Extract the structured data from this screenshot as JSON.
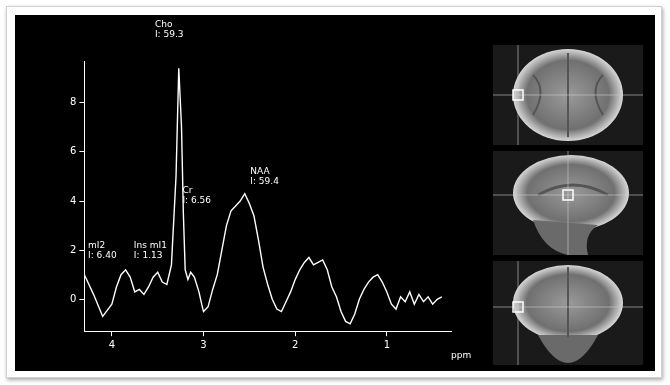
{
  "chart_data": {
    "type": "line",
    "x_label": "ppm",
    "x": [
      4.3,
      4.2,
      4.1,
      4.0,
      3.95,
      3.9,
      3.85,
      3.8,
      3.75,
      3.7,
      3.65,
      3.6,
      3.55,
      3.5,
      3.45,
      3.4,
      3.35,
      3.3,
      3.27,
      3.24,
      3.22,
      3.2,
      3.17,
      3.14,
      3.1,
      3.05,
      3.02,
      3.0,
      2.95,
      2.9,
      2.85,
      2.8,
      2.75,
      2.7,
      2.65,
      2.6,
      2.55,
      2.5,
      2.45,
      2.4,
      2.35,
      2.3,
      2.25,
      2.2,
      2.15,
      2.1,
      2.05,
      2.0,
      1.95,
      1.9,
      1.85,
      1.8,
      1.75,
      1.7,
      1.65,
      1.6,
      1.55,
      1.5,
      1.45,
      1.4,
      1.35,
      1.3,
      1.25,
      1.2,
      1.15,
      1.1,
      1.05,
      1.0,
      0.95,
      0.9,
      0.85,
      0.8,
      0.75,
      0.7,
      0.65,
      0.6,
      0.55,
      0.5,
      0.45,
      0.4
    ],
    "values": [
      1.0,
      0.2,
      -0.7,
      -0.2,
      0.5,
      1.0,
      1.2,
      0.9,
      0.3,
      0.4,
      0.2,
      0.5,
      0.9,
      1.1,
      0.7,
      0.6,
      1.4,
      5.0,
      9.4,
      7.0,
      3.5,
      1.2,
      0.8,
      1.1,
      0.9,
      0.3,
      -0.2,
      -0.5,
      -0.3,
      0.4,
      1.0,
      2.0,
      3.0,
      3.6,
      3.8,
      4.0,
      4.3,
      3.9,
      3.4,
      2.4,
      1.3,
      0.6,
      0.0,
      -0.4,
      -0.5,
      -0.1,
      0.3,
      0.8,
      1.2,
      1.5,
      1.7,
      1.4,
      1.5,
      1.6,
      1.2,
      0.5,
      0.1,
      -0.5,
      -0.9,
      -1.0,
      -0.6,
      0.0,
      0.4,
      0.7,
      0.9,
      1.0,
      0.7,
      0.3,
      -0.2,
      -0.4,
      0.1,
      -0.1,
      0.3,
      -0.2,
      0.2,
      -0.1,
      0.1,
      -0.2,
      0.0,
      0.1
    ],
    "color": "#ffffff",
    "xlim": [
      4.3,
      0.3
    ],
    "xticks": [
      4,
      3,
      2,
      1
    ],
    "ylim": [
      -1.3,
      9.7
    ],
    "yticks": [
      0,
      2,
      4,
      6,
      8
    ],
    "grid": false,
    "annotations": [
      {
        "text": [
          "Cho",
          "I: 59.3"
        ],
        "x": 3.53,
        "y": 10.6
      },
      {
        "text": [
          "Cr",
          "I: 6.56"
        ],
        "x": 3.23,
        "y": 3.85
      },
      {
        "text": [
          "NAA",
          "I: 59.4"
        ],
        "x": 2.49,
        "y": 4.6
      },
      {
        "text": [
          "mI2",
          "I: 6.40"
        ],
        "x": 4.26,
        "y": 1.6
      },
      {
        "text": [
          "Ins mI1",
          "I: 1.13"
        ],
        "x": 3.76,
        "y": 1.6
      }
    ]
  }
}
